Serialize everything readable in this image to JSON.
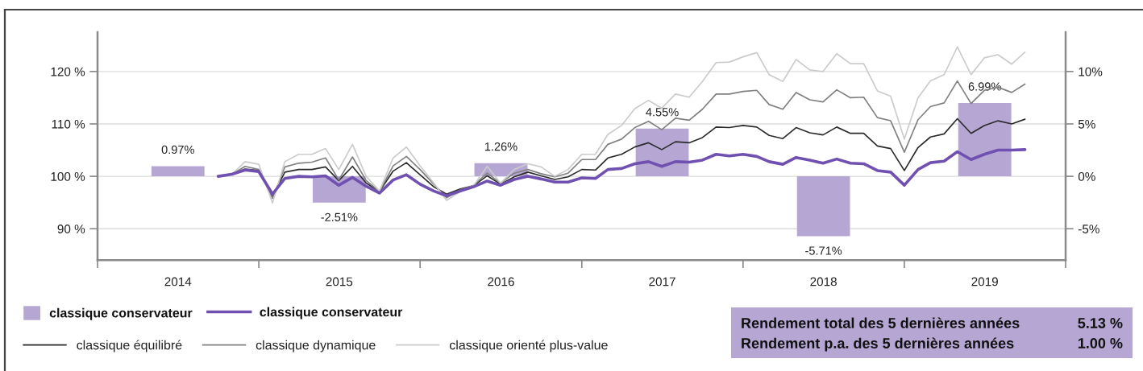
{
  "chart_data": {
    "type": "line",
    "x": [
      "2014-10",
      "2014-11",
      "2014-12",
      "2015-01",
      "2015-02",
      "2015-03",
      "2015-04",
      "2015-05",
      "2015-06",
      "2015-07",
      "2015-08",
      "2015-09",
      "2015-10",
      "2015-11",
      "2015-12",
      "2016-01",
      "2016-02",
      "2016-03",
      "2016-04",
      "2016-05",
      "2016-06",
      "2016-07",
      "2016-08",
      "2016-09",
      "2016-10",
      "2016-11",
      "2016-12",
      "2017-01",
      "2017-02",
      "2017-03",
      "2017-04",
      "2017-05",
      "2017-06",
      "2017-07",
      "2017-08",
      "2017-09",
      "2017-10",
      "2017-11",
      "2017-12",
      "2018-01",
      "2018-02",
      "2018-03",
      "2018-04",
      "2018-05",
      "2018-06",
      "2018-07",
      "2018-08",
      "2018-09",
      "2018-10",
      "2018-11",
      "2018-12",
      "2019-01",
      "2019-02",
      "2019-03",
      "2019-04",
      "2019-05",
      "2019-06",
      "2019-07",
      "2019-08",
      "2019-09",
      "2019-10"
    ],
    "series": [
      {
        "name": "classique conservateur",
        "type": "bar",
        "axis": "y2",
        "color": "#b5a6d3",
        "x": [
          "2014-07-02",
          "2015-07-02",
          "2016-07-02",
          "2017-07-02",
          "2018-07-02",
          "2019-07-02"
        ],
        "values": [
          0.97,
          -2.51,
          1.26,
          4.55,
          -5.71,
          6.99
        ],
        "value_labels": [
          "0.97%",
          "-2.51%",
          "1.26%",
          "4.55%",
          "-5.71%",
          "6.99%"
        ]
      },
      {
        "name": "classique conservateur",
        "color": "#7050b0",
        "values": [
          100.0,
          100.4,
          101.2,
          100.9,
          96.6,
          99.6,
          100.0,
          99.9,
          100.1,
          98.3,
          99.8,
          98.1,
          96.8,
          99.3,
          100.3,
          98.5,
          97.2,
          96.3,
          97.2,
          98.0,
          99.1,
          98.3,
          99.4,
          100.0,
          99.5,
          98.9,
          98.9,
          99.7,
          99.6,
          101.3,
          101.5,
          102.4,
          102.8,
          101.9,
          102.8,
          102.7,
          103.1,
          104.2,
          103.9,
          104.2,
          103.8,
          102.8,
          102.3,
          103.6,
          103.1,
          102.5,
          103.3,
          102.5,
          102.4,
          101.1,
          100.8,
          98.3,
          101.3,
          102.6,
          102.9,
          104.7,
          103.2,
          104.2,
          105.0,
          105.0,
          105.1
        ]
      },
      {
        "name": "classique équilibré",
        "color": "#2b2b2b",
        "values": [
          100.0,
          100.4,
          101.4,
          101.1,
          96.2,
          100.8,
          101.3,
          101.3,
          101.8,
          99.2,
          101.9,
          98.7,
          97.1,
          101.0,
          102.6,
          100.3,
          98.0,
          96.6,
          97.6,
          98.2,
          100.1,
          98.5,
          99.9,
          100.8,
          100.1,
          99.4,
          99.9,
          101.3,
          101.2,
          103.5,
          104.2,
          105.6,
          106.4,
          105.1,
          106.6,
          106.4,
          107.4,
          109.4,
          109.3,
          109.7,
          109.4,
          107.8,
          107.2,
          109.3,
          108.3,
          107.9,
          109.4,
          108.2,
          108.2,
          105.8,
          105.3,
          101.1,
          105.5,
          107.5,
          108.1,
          111.0,
          108.2,
          109.7,
          110.6,
          110.0,
          110.9
        ]
      },
      {
        "name": "classique dynamique",
        "color": "#808080",
        "values": [
          100.0,
          100.4,
          101.9,
          101.3,
          95.8,
          101.8,
          102.5,
          102.7,
          103.5,
          99.3,
          103.7,
          99.2,
          97.1,
          102.0,
          103.8,
          101.3,
          98.5,
          95.9,
          97.4,
          98.3,
          100.6,
          98.7,
          100.6,
          101.3,
          100.5,
          99.9,
          100.6,
          103.2,
          103.2,
          106.1,
          107.1,
          109.3,
          110.5,
          108.9,
          111.1,
          110.7,
          112.8,
          115.7,
          115.7,
          116.2,
          116.4,
          113.7,
          112.8,
          116.0,
          114.6,
          114.2,
          116.5,
          115.0,
          115.1,
          111.2,
          110.6,
          104.6,
          110.8,
          113.3,
          114.0,
          118.2,
          113.9,
          116.4,
          117.0,
          116.0,
          117.6
        ]
      },
      {
        "name": "classique orienté plus-value",
        "color": "#cbcbcb",
        "values": [
          100.0,
          100.4,
          102.8,
          102.3,
          94.9,
          102.8,
          104.2,
          104.2,
          105.3,
          101.3,
          106.1,
          100.0,
          97.2,
          103.5,
          105.6,
          102.0,
          98.7,
          95.4,
          97.1,
          98.2,
          101.9,
          98.7,
          101.3,
          102.4,
          101.8,
          100.0,
          101.3,
          104.2,
          104.2,
          108.0,
          109.7,
          112.9,
          114.5,
          113.0,
          115.7,
          115.1,
          118.1,
          121.7,
          121.8,
          122.8,
          123.6,
          119.4,
          118.1,
          122.3,
          120.3,
          120.0,
          123.4,
          121.5,
          121.5,
          116.3,
          115.3,
          107.1,
          115.0,
          118.2,
          119.4,
          124.7,
          119.4,
          122.6,
          123.2,
          121.4,
          123.7
        ]
      }
    ],
    "xlim": [
      "2014-01-01",
      "2020-01-01"
    ],
    "xticks": [
      {
        "value": "2014-01-01",
        "label": null
      },
      {
        "value": "2015-01-01",
        "label": null
      },
      {
        "value": "2016-01-01",
        "label": null
      },
      {
        "value": "2017-01-01",
        "label": null
      },
      {
        "value": "2018-01-01",
        "label": null
      },
      {
        "value": "2019-01-01",
        "label": null
      },
      {
        "value": "2020-01-01",
        "label": null
      },
      {
        "value": "2014-07-02",
        "label": "2014"
      },
      {
        "value": "2015-07-02",
        "label": "2015"
      },
      {
        "value": "2016-07-02",
        "label": "2016"
      },
      {
        "value": "2017-07-02",
        "label": "2017"
      },
      {
        "value": "2018-07-02",
        "label": "2018"
      },
      {
        "value": "2019-07-02",
        "label": "2019"
      }
    ],
    "ylim": [
      84,
      127.5
    ],
    "yticks": [
      {
        "value": 90,
        "label": "90 %"
      },
      {
        "value": 100,
        "label": "100 %"
      },
      {
        "value": 110,
        "label": "110 %"
      },
      {
        "value": 120,
        "label": "120 %"
      }
    ],
    "y2lim": [
      -8,
      13.75
    ],
    "y2ticks": [
      {
        "value": -5,
        "label": "-5%"
      },
      {
        "value": 0,
        "label": "0%"
      },
      {
        "value": 5,
        "label": "5%"
      },
      {
        "value": 10,
        "label": "10%"
      }
    ],
    "grid": true,
    "legend": "bottom left",
    "annotations": [
      "Rendement total des 5 dernières années",
      "5.13 %",
      "Rendement p.a. des 5 dernières années",
      "1.00 %"
    ]
  }
}
